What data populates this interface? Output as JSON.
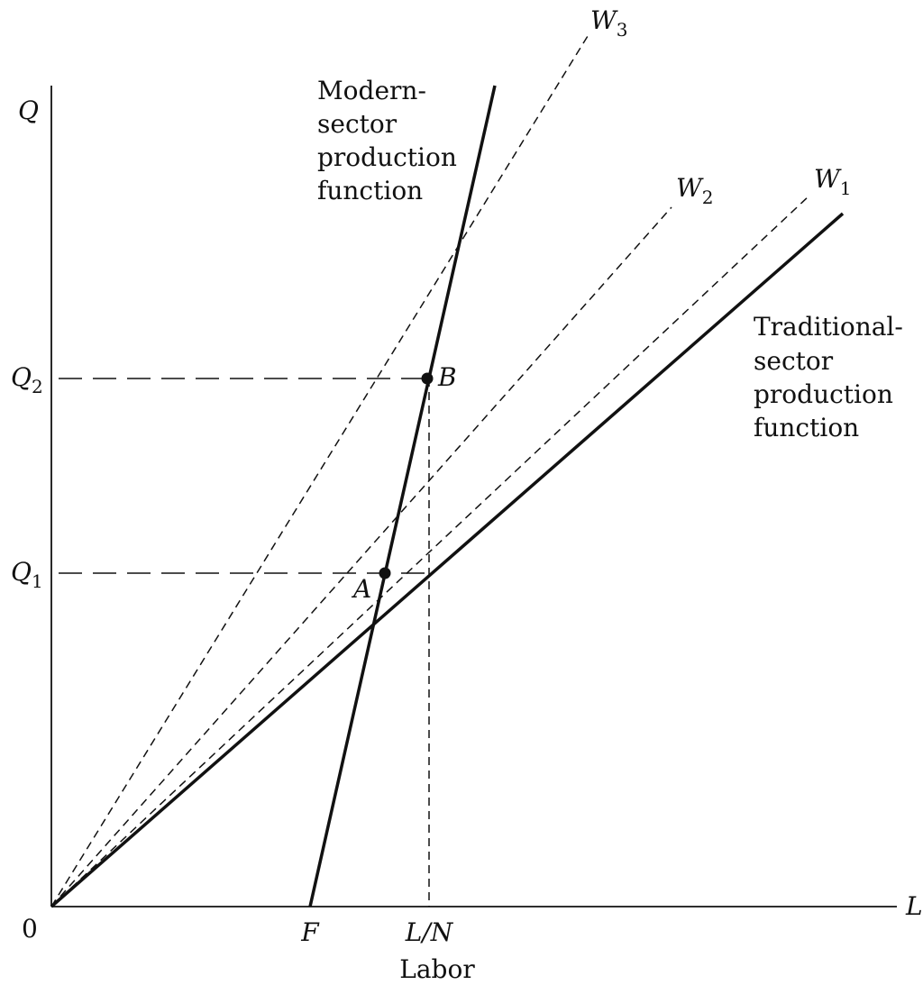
{
  "axes": {
    "y_symbol": "Q",
    "x_symbol": "L",
    "origin": "0",
    "x_title": "Labor"
  },
  "x_markers": {
    "f": "F",
    "ln": "L/N"
  },
  "y_markers": {
    "q2": {
      "symbol": "Q",
      "subscript": "2"
    },
    "q1": {
      "symbol": "Q",
      "subscript": "1"
    }
  },
  "points": {
    "b": "B",
    "a": "A"
  },
  "wage_lines": {
    "w3": {
      "symbol": "W",
      "subscript": "3"
    },
    "w2": {
      "symbol": "W",
      "subscript": "2"
    },
    "w1": {
      "symbol": "W",
      "subscript": "1"
    }
  },
  "modern_label": [
    "Modern-",
    "sector",
    "production",
    "function"
  ],
  "traditional_label": [
    "Traditional-",
    "sector",
    "production",
    "function"
  ]
}
